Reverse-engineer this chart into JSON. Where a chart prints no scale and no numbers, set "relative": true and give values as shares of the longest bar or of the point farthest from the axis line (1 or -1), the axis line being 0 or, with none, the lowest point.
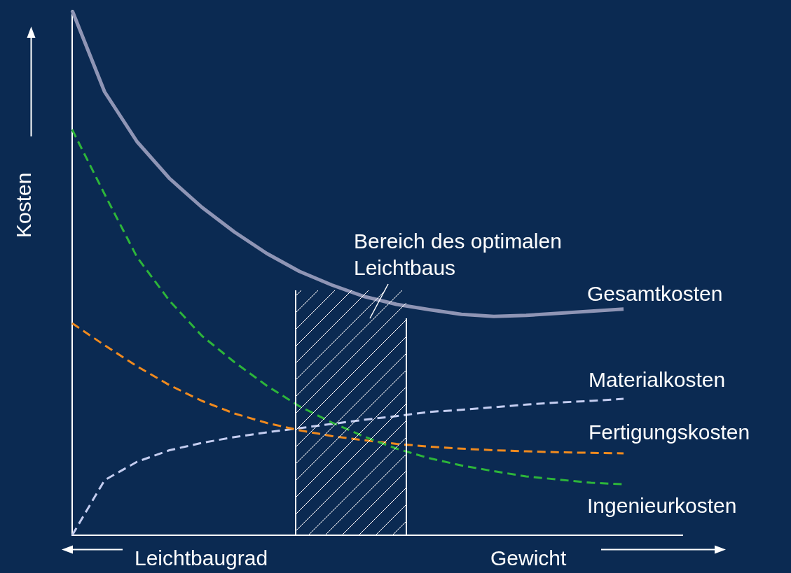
{
  "chart_data": {
    "type": "line",
    "relative": true,
    "xlabel": "Leichtbaugrad",
    "ylabel": "Kosten",
    "annotations": [
      "Bereich des optimalen Leichtbaus",
      "Gewicht"
    ],
    "grid": false,
    "legend": false,
    "marker": "none",
    "categories": [
      null,
      null,
      null,
      null,
      null,
      null,
      null,
      null,
      null,
      null,
      null,
      null,
      null,
      null,
      null,
      null,
      null,
      null
    ],
    "series": [
      {
        "name": "Gesamtkosten",
        "color": "#8f95b5",
        "line_style": "solid",
        "values": [
          1.0,
          0.845,
          0.75,
          0.68,
          0.625,
          0.578,
          0.537,
          0.503,
          0.477,
          0.455,
          0.44,
          0.43,
          0.421,
          0.417,
          0.419,
          0.423,
          0.427,
          0.431
        ]
      },
      {
        "name": "Materialkosten",
        "color": "#c4cdf0",
        "line_style": "dashed",
        "values": [
          0,
          0.105,
          0.14,
          0.162,
          0.176,
          0.187,
          0.196,
          0.204,
          0.212,
          0.22,
          0.227,
          0.235,
          0.239,
          0.244,
          0.249,
          0.253,
          0.256,
          0.26
        ]
      },
      {
        "name": "Fertigungskosten",
        "color": "#f08a1e",
        "line_style": "dashed",
        "values": [
          0.404,
          0.362,
          0.322,
          0.286,
          0.256,
          0.232,
          0.214,
          0.2,
          0.189,
          0.181,
          0.174,
          0.169,
          0.165,
          0.162,
          0.16,
          0.158,
          0.157,
          0.156
        ]
      },
      {
        "name": "Ingenieurkosten",
        "color": "#2db53a",
        "line_style": "dashed",
        "values": [
          0.773,
          0.65,
          0.53,
          0.447,
          0.38,
          0.33,
          0.285,
          0.246,
          0.215,
          0.188,
          0.165,
          0.147,
          0.133,
          0.122,
          0.112,
          0.106,
          0.1,
          0.097
        ]
      }
    ]
  }
}
